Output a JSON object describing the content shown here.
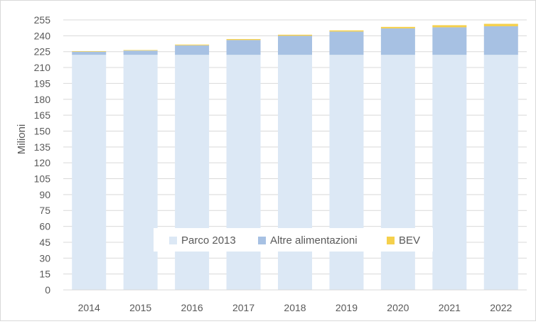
{
  "chart_data": {
    "type": "bar",
    "stacked": true,
    "categories": [
      "2014",
      "2015",
      "2016",
      "2017",
      "2018",
      "2019",
      "2020",
      "2021",
      "2022"
    ],
    "series": [
      {
        "name": "Parco 2013",
        "color": "#dce8f5",
        "values": [
          222,
          222,
          222,
          222,
          222,
          222,
          222,
          222,
          222
        ]
      },
      {
        "name": "Altre alimentazioni",
        "color": "#a7c1e3",
        "values": [
          3,
          4,
          9,
          14,
          18,
          22,
          25,
          26,
          27
        ]
      },
      {
        "name": "BEV",
        "color": "#f5d04c",
        "values": [
          0.5,
          0.5,
          0.7,
          0.9,
          1.0,
          1.1,
          1.4,
          2.0,
          2.3
        ]
      }
    ],
    "ylabel": "Milioni",
    "ylim": [
      0,
      255
    ],
    "yticks": [
      "0",
      "15",
      "30",
      "45",
      "60",
      "75",
      "90",
      "105",
      "120",
      "135",
      "150",
      "165",
      "180",
      "195",
      "210",
      "225",
      "240",
      "255"
    ],
    "grid": true,
    "legend_position": "center-bottom"
  }
}
